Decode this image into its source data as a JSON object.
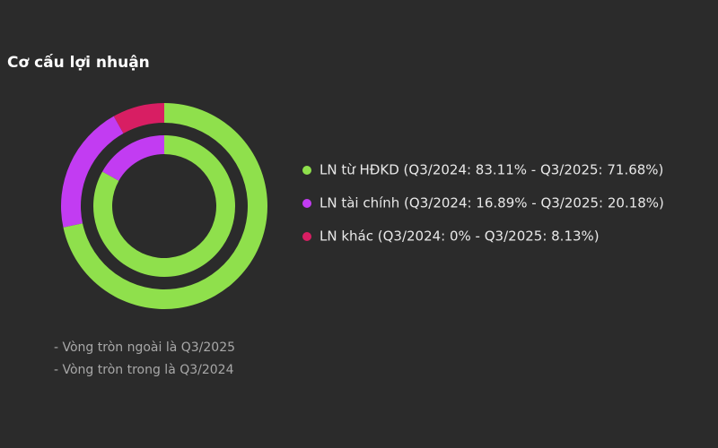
{
  "chart_data": {
    "type": "nested-donut",
    "title": "Cơ cấu lợi nhuận",
    "categories": [
      "LN từ HĐKD (Q3/2024: 83.11% - Q3/2025: 71.68%)",
      "LN tài chính (Q3/2024: 16.89% - Q3/2025: 20.18%)",
      "LN khác (Q3/2024: 0% - Q3/2025: 8.13%)"
    ],
    "colors": [
      "#8fe04c",
      "#c23cf2",
      "#d81e63"
    ],
    "series": [
      {
        "values": [
          71.68,
          20.18,
          8.13
        ]
      },
      {
        "values": [
          83.11,
          16.89,
          0
        ]
      }
    ],
    "notes": [
      "- Vòng tròn ngoài là Q3/2025",
      "- Vòng tròn trong là Q3/2024"
    ]
  }
}
